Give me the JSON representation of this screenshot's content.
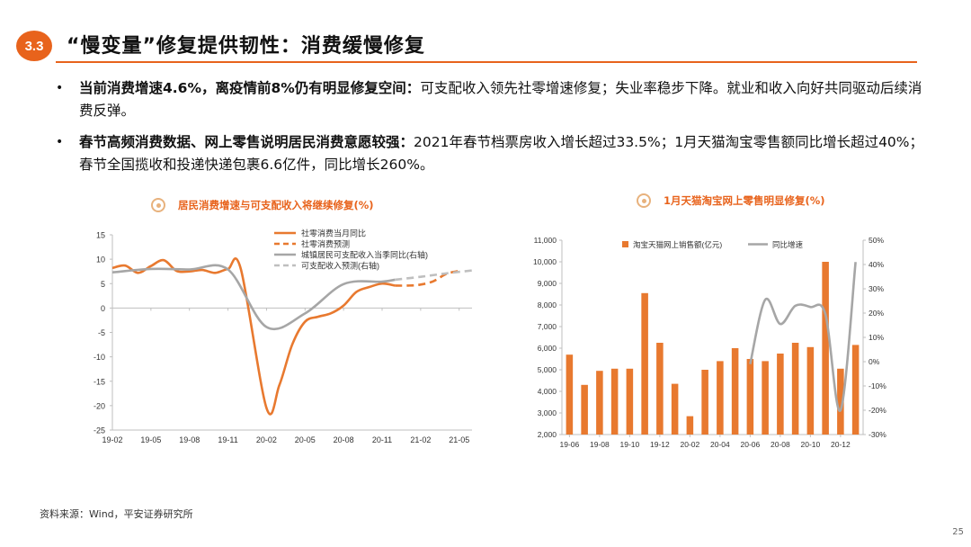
{
  "header": {
    "badge": "3.3",
    "title": "“慢变量”修复提供韧性：消费缓慢修复"
  },
  "bullets": [
    {
      "bold": "当前消费增速4.6%，离疫情前8%仍有明显修复空间：",
      "normal": "可支配收入领先社零增速修复；失业率稳步下降。就业和收入向好共同驱动后续消费反弹。"
    },
    {
      "bold": "春节高频消费数据、网上零售说明居民消费意愿较强：",
      "normal": "2021年春节档票房收入增长超过33.5%；1月天猫淘宝零售额同比增长超过40%；春节全国揽收和投递快递包裹6.6亿件，同比增长260%。"
    }
  ],
  "source": "资料来源：Wind，平安证券研究所",
  "page_number": "25",
  "colors": {
    "accent": "#e8631c",
    "orange_series": "#e8792f",
    "gray_series": "#a6a6a6",
    "dashed_gray": "#bfbfbf"
  },
  "chart_data": [
    {
      "type": "line",
      "title": "居民消费增速与可支配收入将继续修复(%)",
      "ylim": [
        -25,
        15
      ],
      "yticks": [
        "15",
        "10",
        "5",
        "0",
        "-5",
        "-10",
        "-15",
        "-20",
        "-25"
      ],
      "ytick_values": [
        15,
        10,
        5,
        0,
        -5,
        -10,
        -15,
        -20,
        -25
      ],
      "xtick_labels": [
        "19-02",
        "19-05",
        "19-08",
        "19-11",
        "20-02",
        "20-05",
        "20-08",
        "20-11",
        "21-02",
        "21-05"
      ],
      "x_range_months": [
        "2019-02",
        "2021-06"
      ],
      "legend": {
        "placement": "top-right"
      },
      "series": [
        {
          "name": "社零消费当月同比",
          "style": "solid",
          "color": "#e8792f",
          "points": [
            [
              "2019-02",
              8.2
            ],
            [
              "2019-03",
              8.7
            ],
            [
              "2019-04",
              7.2
            ],
            [
              "2019-05",
              8.6
            ],
            [
              "2019-06",
              9.8
            ],
            [
              "2019-07",
              7.6
            ],
            [
              "2019-08",
              7.5
            ],
            [
              "2019-09",
              7.8
            ],
            [
              "2019-10",
              7.2
            ],
            [
              "2019-11",
              8.0
            ],
            [
              "2019-12",
              8.0
            ],
            [
              "2020-02",
              -20.5
            ],
            [
              "2020-03",
              -15.8
            ],
            [
              "2020-04",
              -7.5
            ],
            [
              "2020-05",
              -2.8
            ],
            [
              "2020-06",
              -1.8
            ],
            [
              "2020-07",
              -1.1
            ],
            [
              "2020-08",
              0.5
            ],
            [
              "2020-09",
              3.3
            ],
            [
              "2020-10",
              4.3
            ],
            [
              "2020-11",
              5.0
            ],
            [
              "2020-12",
              4.6
            ]
          ]
        },
        {
          "name": "社零消费预测",
          "style": "dashed",
          "color": "#e8792f",
          "points": [
            [
              "2020-12",
              4.6
            ],
            [
              "2021-01",
              4.6
            ],
            [
              "2021-02",
              4.8
            ],
            [
              "2021-03",
              5.5
            ],
            [
              "2021-04",
              7.0
            ],
            [
              "2021-05",
              7.6
            ]
          ]
        },
        {
          "name": "城镇居民可支配收入当季同比(右轴)",
          "style": "solid",
          "color": "#a6a6a6",
          "points": [
            [
              "2019-02",
              7.3
            ],
            [
              "2019-05",
              8.0
            ],
            [
              "2019-08",
              7.9
            ],
            [
              "2019-11",
              7.9
            ],
            [
              "2020-02",
              -3.9
            ],
            [
              "2020-05",
              -1.1
            ],
            [
              "2020-08",
              4.9
            ],
            [
              "2020-11",
              5.4
            ],
            [
              "2020-12",
              5.8
            ]
          ]
        },
        {
          "name": "可支配收入预测(右轴)",
          "style": "dashed",
          "color": "#bfbfbf",
          "points": [
            [
              "2020-12",
              5.8
            ],
            [
              "2021-02",
              6.4
            ],
            [
              "2021-04",
              7.1
            ],
            [
              "2021-06",
              7.7
            ]
          ]
        }
      ]
    },
    {
      "type": "bar",
      "title": "1月天猫淘宝网上零售明显修复(%)",
      "categories": [
        "2019-06",
        "2019-07",
        "2019-08",
        "2019-09",
        "2019-10",
        "2019-11",
        "2019-12",
        "2020-01",
        "2020-02",
        "2020-03",
        "2020-04",
        "2020-05",
        "2020-06",
        "2020-07",
        "2020-08",
        "2020-09",
        "2020-10",
        "2020-11",
        "2020-12",
        "2021-01"
      ],
      "xtick_labels": [
        "19-06",
        "19-08",
        "19-10",
        "19-12",
        "20-02",
        "20-04",
        "20-06",
        "20-08",
        "20-10",
        "20-12"
      ],
      "ylim": [
        2000,
        11000
      ],
      "yticks": [
        "11,000",
        "10,000",
        "9,000",
        "8,000",
        "7,000",
        "6,000",
        "5,000",
        "4,000",
        "3,000",
        "2,000"
      ],
      "ytick_values": [
        11000,
        10000,
        9000,
        8000,
        7000,
        6000,
        5000,
        4000,
        3000,
        2000
      ],
      "y2lim": [
        -30,
        50
      ],
      "y2ticks": [
        "50%",
        "40%",
        "30%",
        "20%",
        "10%",
        "0%",
        "-10%",
        "-20%",
        "-30%"
      ],
      "y2tick_values": [
        50,
        40,
        30,
        20,
        10,
        0,
        -10,
        -20,
        -30
      ],
      "legend": {
        "placement": "top"
      },
      "series": [
        {
          "name": "淘宝天猫网上销售额(亿元)",
          "kind": "bar",
          "axis": "left",
          "color": "#e8792f",
          "values": [
            5700,
            4300,
            4950,
            5050,
            5050,
            8550,
            6250,
            4350,
            2850,
            5000,
            5400,
            6000,
            5500,
            5400,
            5750,
            6250,
            6050,
            10000,
            5050,
            6150
          ]
        },
        {
          "name": "同比增速",
          "kind": "line",
          "axis": "right",
          "color": "#a6a6a6",
          "points": [
            [
              "2020-06",
              -1
            ],
            [
              "2020-07",
              25.5
            ],
            [
              "2020-08",
              15.5
            ],
            [
              "2020-09",
              23
            ],
            [
              "2020-10",
              22.5
            ],
            [
              "2020-11",
              19.5
            ],
            [
              "2020-12",
              -20
            ],
            [
              "2021-01",
              41
            ]
          ]
        }
      ]
    }
  ]
}
